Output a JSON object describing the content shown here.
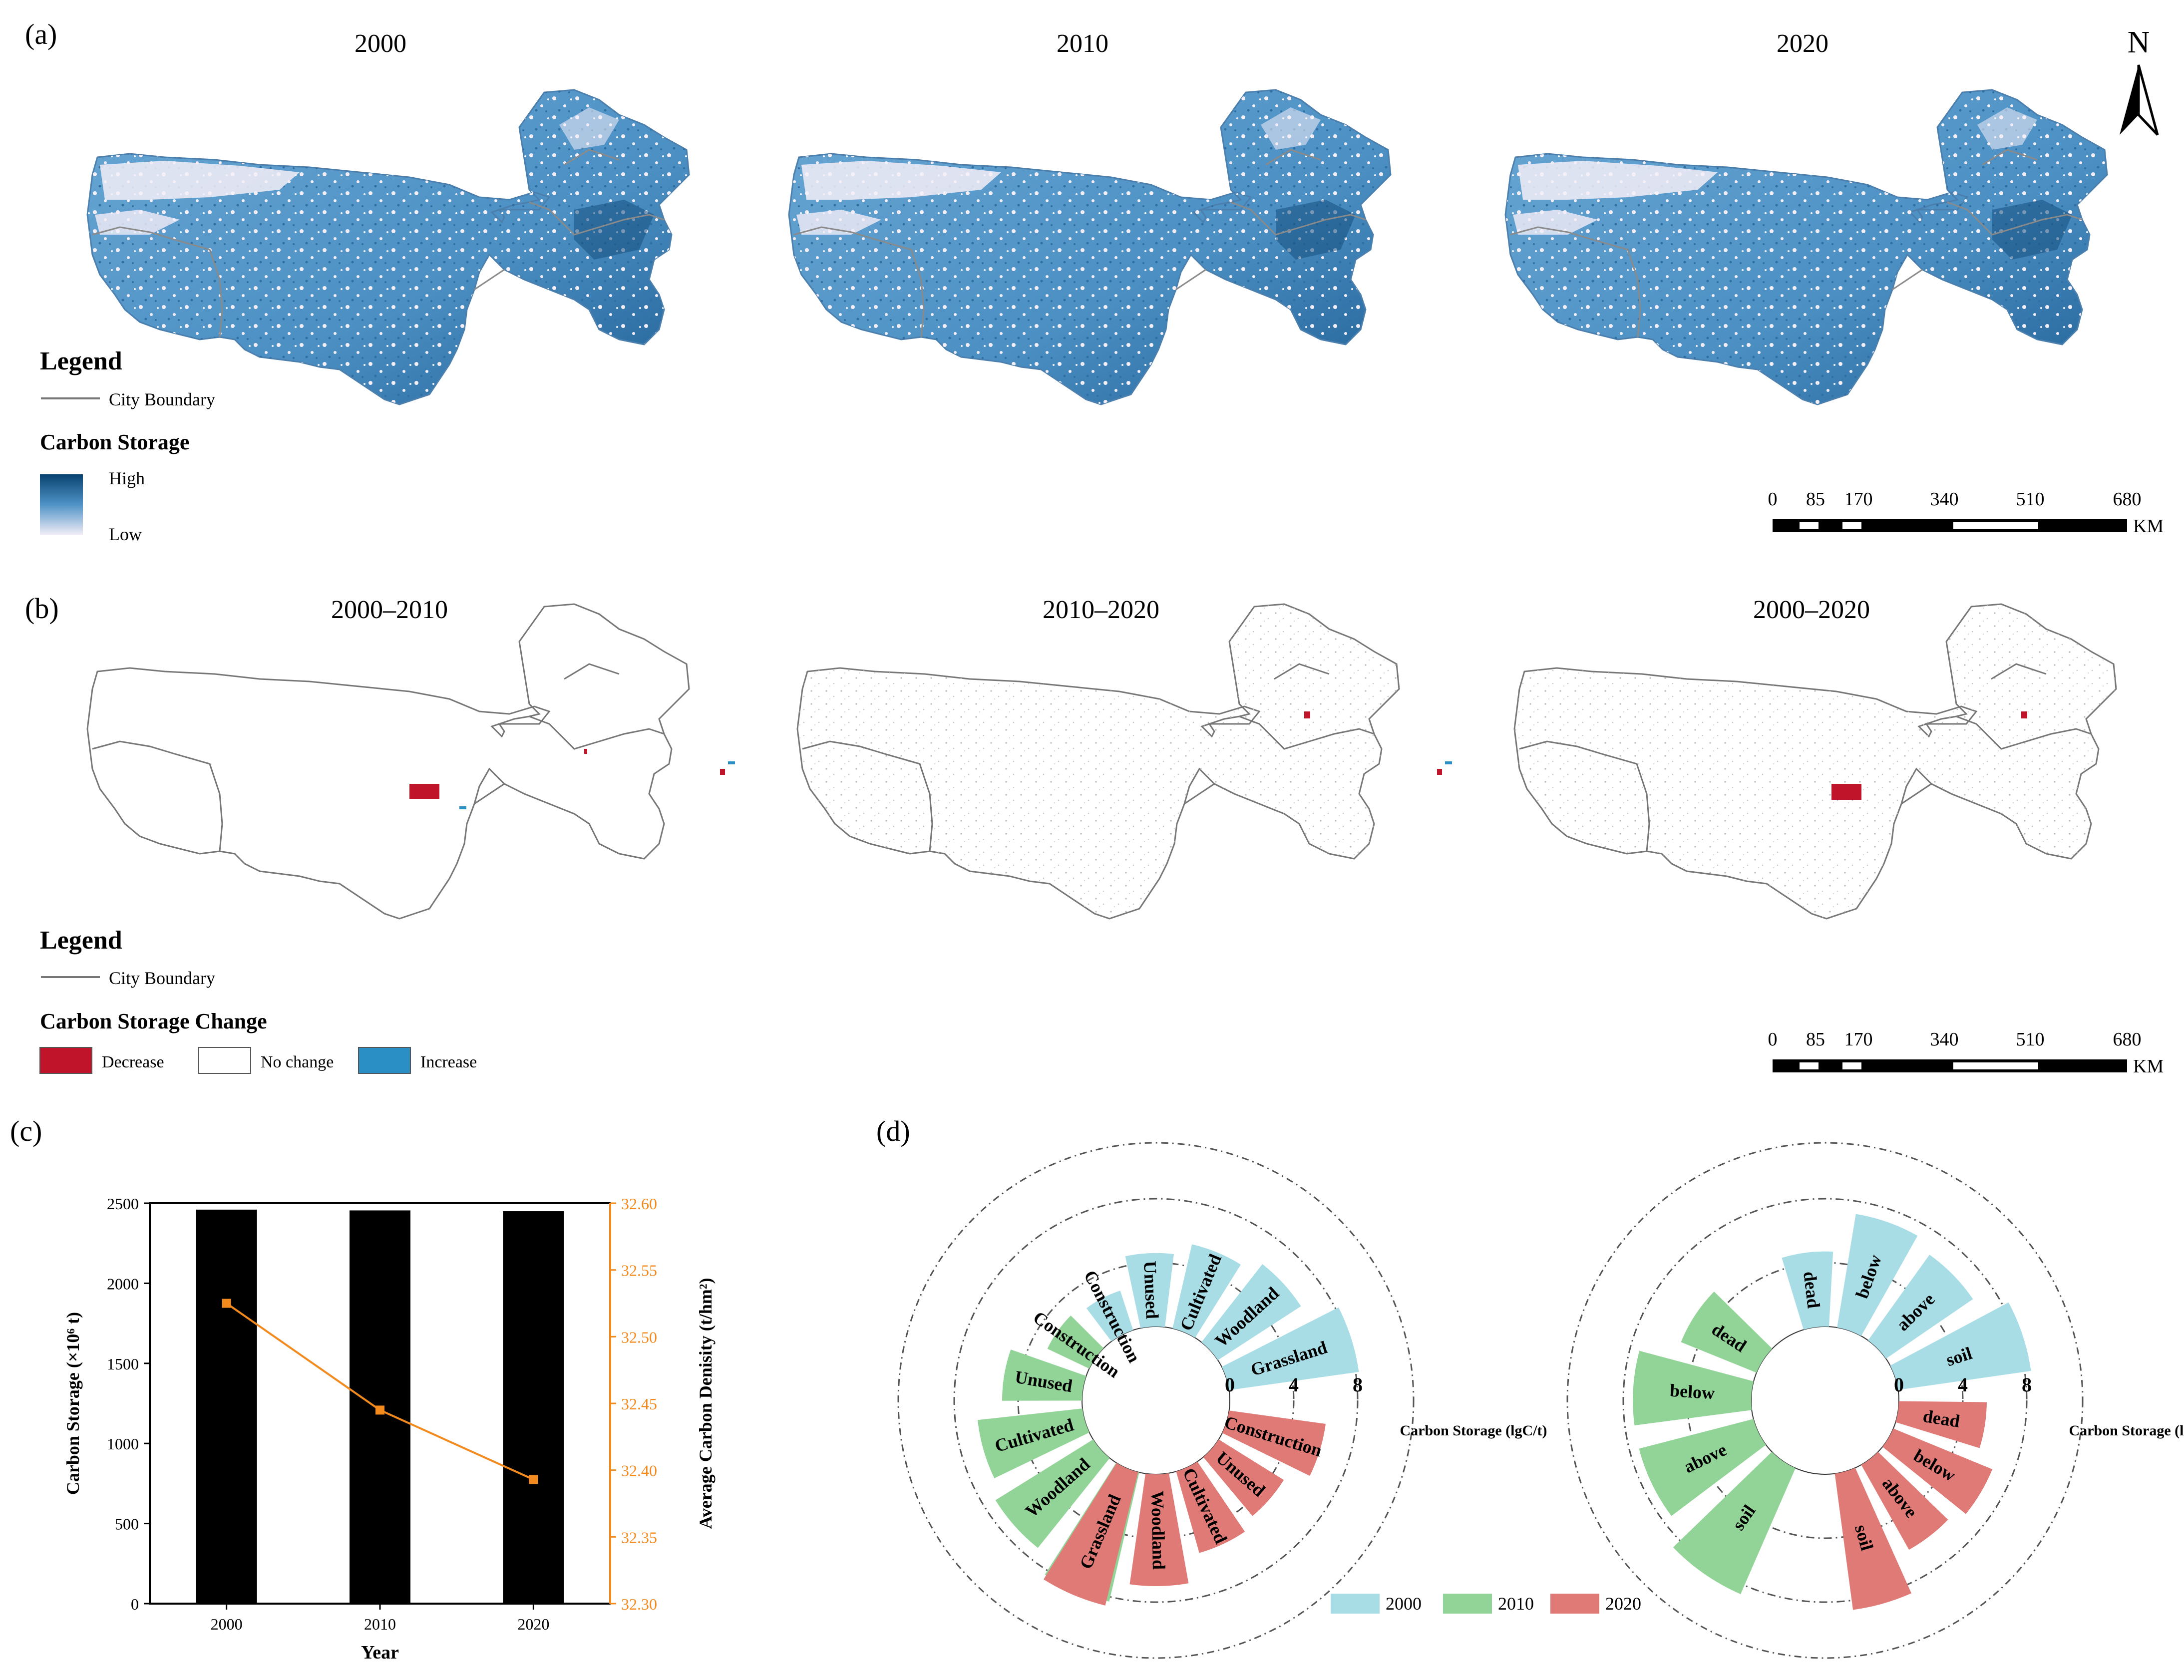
{
  "panels": {
    "a": {
      "label": "(a)",
      "years": [
        "2000",
        "2010",
        "2020"
      ],
      "legend_title": "Legend",
      "boundary_label": "City Boundary",
      "storage_title": "Carbon Storage",
      "high_label": "High",
      "low_label": "Low",
      "north_label": "N",
      "scale_ticks": [
        "0",
        "85",
        "170",
        "340",
        "510",
        "680"
      ],
      "scale_unit": "KM",
      "colors": {
        "low": "#f4eef7",
        "mid": "#4f93c7",
        "high": "#08426f"
      }
    },
    "b": {
      "label": "(b)",
      "periods": [
        "2000–2010",
        "2010–2020",
        "2000–2020"
      ],
      "legend_title": "Legend",
      "boundary_label": "City Boundary",
      "change_title": "Carbon Storage Change",
      "decrease_label": "Decrease",
      "nochange_label": "No change",
      "increase_label": "Increase",
      "scale_ticks": [
        "0",
        "85",
        "170",
        "340",
        "510",
        "680"
      ],
      "scale_unit": "KM",
      "colors": {
        "decrease": "#c0142b",
        "increase": "#2a8fc4",
        "nochange": "#ffffff"
      }
    },
    "c": {
      "label": "(c)"
    },
    "d": {
      "label": "(d)"
    }
  },
  "chart_data": [
    {
      "type": "bar",
      "id": "c",
      "categories": [
        "2000",
        "2010",
        "2020"
      ],
      "values": [
        2460,
        2455,
        2450
      ],
      "xlabel": "Year",
      "ylabel": "Carbon Storage (×10⁶ t)",
      "ylim": [
        0,
        2500
      ],
      "yticks": [
        "0",
        "500",
        "1000",
        "1500",
        "2000",
        "2500"
      ],
      "bar_color": "#000000",
      "secondary": {
        "type": "line",
        "values": [
          32.525,
          32.445,
          32.393
        ],
        "ylabel": "Average Carbon Denisity (t/hm²)",
        "ylim": [
          32.3,
          32.6
        ],
        "yticks": [
          "32.30",
          "32.35",
          "32.40",
          "32.45",
          "32.50",
          "32.55",
          "32.60"
        ],
        "color": "#f28a1e"
      }
    },
    {
      "type": "radial-bar",
      "id": "d-left",
      "axis_label": "Carbon Storage (lgC/t)",
      "axis_ticks": [
        "0",
        "4",
        "8"
      ],
      "rmax": 8,
      "series": [
        {
          "name": "2000",
          "color": "#a8dde6",
          "categories": [
            "Construction",
            "Unused",
            "Cultivated",
            "Woodland",
            "Grassland"
          ],
          "values": [
            2.6,
            4.6,
            5.4,
            6.2,
            8.2
          ]
        },
        {
          "name": "2010",
          "color": "#92d497",
          "categories": [
            "Grassland",
            "Woodland",
            "Cultivated",
            "Unused",
            "Construction"
          ],
          "values": [
            8.3,
            7.2,
            6.6,
            5.0,
            2.9
          ]
        },
        {
          "name": "2020",
          "color": "#e07a76",
          "categories": [
            "Construction",
            "Unused",
            "Cultivated",
            "Woodland",
            "Grassland"
          ],
          "values": [
            6.1,
            4.8,
            5.3,
            7.0,
            8.6
          ]
        }
      ]
    },
    {
      "type": "radial-bar",
      "id": "d-right",
      "axis_label": "Carbon Storage (lgC/t)",
      "axis_ticks": [
        "0",
        "4",
        "8"
      ],
      "rmax": 8,
      "series": [
        {
          "name": "2000",
          "color": "#a8dde6",
          "categories": [
            "dead",
            "below",
            "above",
            "soil"
          ],
          "values": [
            4.7,
            7.2,
            6.6,
            8.4
          ]
        },
        {
          "name": "2010",
          "color": "#92d497",
          "categories": [
            "soil",
            "above",
            "below",
            "dead"
          ],
          "values": [
            8.6,
            7.4,
            7.4,
            5.1
          ]
        },
        {
          "name": "2020",
          "color": "#e07a76",
          "categories": [
            "dead",
            "below",
            "above",
            "soil"
          ],
          "values": [
            5.5,
            6.7,
            6.1,
            8.6
          ]
        }
      ],
      "legend": [
        "2000",
        "2010",
        "2020"
      ]
    }
  ]
}
